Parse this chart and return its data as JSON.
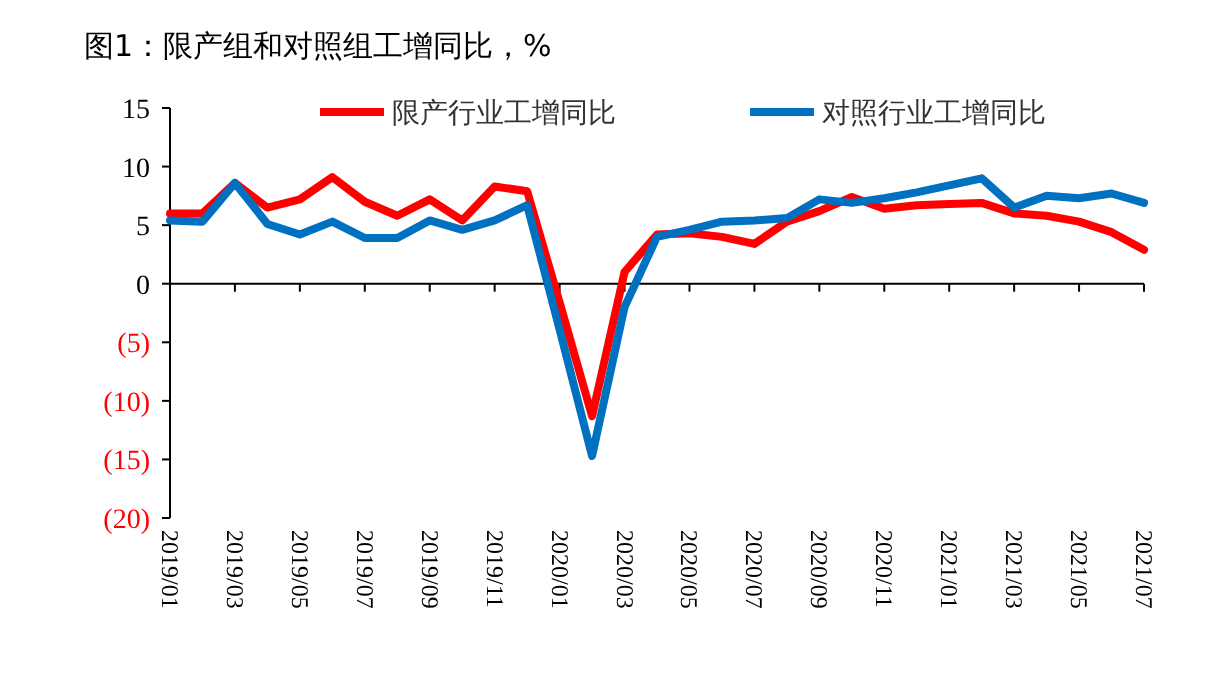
{
  "chart_data": {
    "type": "line",
    "title": "图1：限产组和对照组工增同比，%",
    "categories": [
      "2019/01",
      null,
      "2019/03",
      null,
      "2019/05",
      null,
      "2019/07",
      null,
      "2019/09",
      null,
      "2019/11",
      null,
      "2020/01",
      null,
      "2020/03",
      null,
      "2020/05",
      null,
      "2020/07",
      null,
      "2020/09",
      null,
      "2020/11",
      null,
      "2021/01",
      null,
      "2021/03",
      null,
      "2021/05",
      null,
      "2021/07"
    ],
    "series": [
      {
        "name": "限产行业工增同比",
        "color": "#ff0000",
        "values": [
          6.0,
          6.0,
          8.6,
          6.5,
          7.2,
          9.1,
          7.0,
          5.8,
          7.2,
          5.4,
          8.3,
          7.9,
          -1.6,
          -11.3,
          1.0,
          4.2,
          4.3,
          4.0,
          3.4,
          5.3,
          6.2,
          7.4,
          6.4,
          6.7,
          6.8,
          6.9,
          6.0,
          5.8,
          5.3,
          4.4,
          2.9
        ]
      },
      {
        "name": "对照行业工增同比",
        "color": "#0070c0",
        "values": [
          5.4,
          5.3,
          8.6,
          5.1,
          4.2,
          5.3,
          3.9,
          3.9,
          5.4,
          4.6,
          5.4,
          6.7,
          -3.9,
          -14.7,
          -2.0,
          4.0,
          4.6,
          5.3,
          5.4,
          5.6,
          7.2,
          6.9,
          7.3,
          7.8,
          8.4,
          9.0,
          6.5,
          7.5,
          7.3,
          7.7,
          6.9
        ]
      }
    ],
    "ylim": [
      -20,
      15
    ],
    "yticks": [
      15,
      10,
      5,
      0,
      {
        "value": -5,
        "label": "(5)"
      },
      {
        "value": -10,
        "label": "(10)"
      },
      {
        "value": -15,
        "label": "(15)"
      },
      {
        "value": -20,
        "label": "(20)"
      }
    ],
    "legend": "top",
    "marker": "none",
    "line_style": "solid"
  }
}
